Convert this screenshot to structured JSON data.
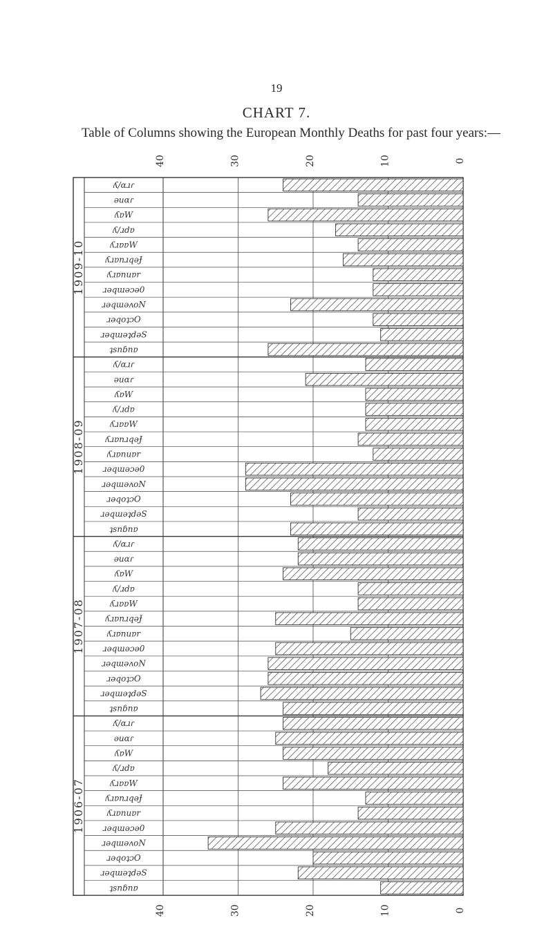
{
  "page_number": "19",
  "title": "CHART 7.",
  "subtitle": "Table of Columns showing the European Monthly Deaths for past four years:—",
  "chart_data": {
    "type": "bar",
    "orientation": "horizontal",
    "scale_direction": "right-to-left",
    "axis_ticks": [
      "40",
      "30",
      "20",
      "10",
      "0"
    ],
    "xlim": [
      0,
      40
    ],
    "grid": true,
    "categories": [
      "April",
      "June",
      "May",
      "July",
      "August",
      "September",
      "October",
      "November",
      "December",
      "January",
      "February",
      "March"
    ],
    "category_text_as_printed_mirrored": [
      "ʎ/ɑɹɾ",
      "ǝuɑɾ",
      "ʎɐW",
      "ʎ/ɹdɐ",
      "ʎɹɐɐW",
      "ʎɹɐnɹqǝɈ",
      "ʎɹɐnuɐr",
      "ɹǝqɯǝɔǝ0",
      "ɹǝqɯǝʌoN",
      "ɹǝqoʇɔO",
      "ɹǝqɯǝʇdǝS",
      "ʇsnɓnɐ"
    ],
    "series": [
      {
        "name": "1909-10",
        "values": [
          24,
          14,
          26,
          17,
          14,
          16,
          12,
          12,
          23,
          12,
          11,
          26
        ]
      },
      {
        "name": "1908-09",
        "values": [
          13,
          21,
          13,
          13,
          13,
          14,
          12,
          29,
          29,
          23,
          14,
          23
        ]
      },
      {
        "name": "1907-08",
        "values": [
          22,
          22,
          24,
          14,
          14,
          25,
          15,
          25,
          26,
          26,
          27,
          24
        ]
      },
      {
        "name": "1906-07",
        "values": [
          24,
          25,
          24,
          18,
          24,
          13,
          14,
          25,
          34,
          20,
          22,
          11
        ]
      }
    ]
  },
  "colors": {
    "ink": "#333333",
    "paper": "#ffffff",
    "hatch": "#5a5a5a"
  }
}
